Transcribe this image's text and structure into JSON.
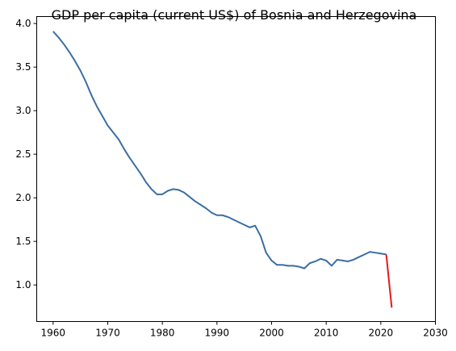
{
  "chart_data": {
    "type": "line",
    "title": "GDP per capita (current US$) of Bosnia and Herzegovina",
    "xlabel": "",
    "ylabel": "",
    "xlim": [
      1957,
      2030
    ],
    "ylim": [
      0.58,
      4.08
    ],
    "x_ticks": [
      "1960",
      "1970",
      "1980",
      "1990",
      "2000",
      "2010",
      "2020",
      "2030"
    ],
    "y_ticks": [
      "1.0",
      "1.5",
      "2.0",
      "2.5",
      "3.0",
      "3.5",
      "4.0"
    ],
    "grid": false,
    "series": [
      {
        "color": "#3a6ea5",
        "x": [
          1960,
          1961,
          1962,
          1963,
          1964,
          1965,
          1966,
          1967,
          1968,
          1969,
          1970,
          1971,
          1972,
          1973,
          1974,
          1975,
          1976,
          1977,
          1978,
          1979,
          1980,
          1981,
          1982,
          1983,
          1984,
          1985,
          1986,
          1987,
          1988,
          1989,
          1990,
          1991,
          1992,
          1993,
          1994,
          1995,
          1996,
          1997,
          1998,
          1999,
          2000,
          2001,
          2002,
          2003,
          2004,
          2005,
          2006,
          2007,
          2008,
          2009,
          2010,
          2011,
          2012,
          2013,
          2014,
          2015,
          2016,
          2017,
          2018,
          2019,
          2020,
          2021
        ],
        "y": [
          3.91,
          3.84,
          3.76,
          3.67,
          3.57,
          3.46,
          3.33,
          3.18,
          3.05,
          2.94,
          2.83,
          2.75,
          2.67,
          2.56,
          2.46,
          2.37,
          2.28,
          2.18,
          2.1,
          2.04,
          2.04,
          2.08,
          2.1,
          2.09,
          2.06,
          2.01,
          1.96,
          1.92,
          1.88,
          1.83,
          1.8,
          1.8,
          1.78,
          1.75,
          1.72,
          1.69,
          1.66,
          1.68,
          1.56,
          1.37,
          1.28,
          1.23,
          1.23,
          1.22,
          1.22,
          1.21,
          1.19,
          1.25,
          1.27,
          1.3,
          1.28,
          1.22,
          1.29,
          1.28,
          1.27,
          1.29,
          1.32,
          1.35,
          1.38,
          1.37,
          1.36,
          1.35
        ]
      },
      {
        "color": "#e31a1c",
        "x": [
          2021,
          2022
        ],
        "y": [
          1.35,
          0.74
        ]
      }
    ]
  }
}
